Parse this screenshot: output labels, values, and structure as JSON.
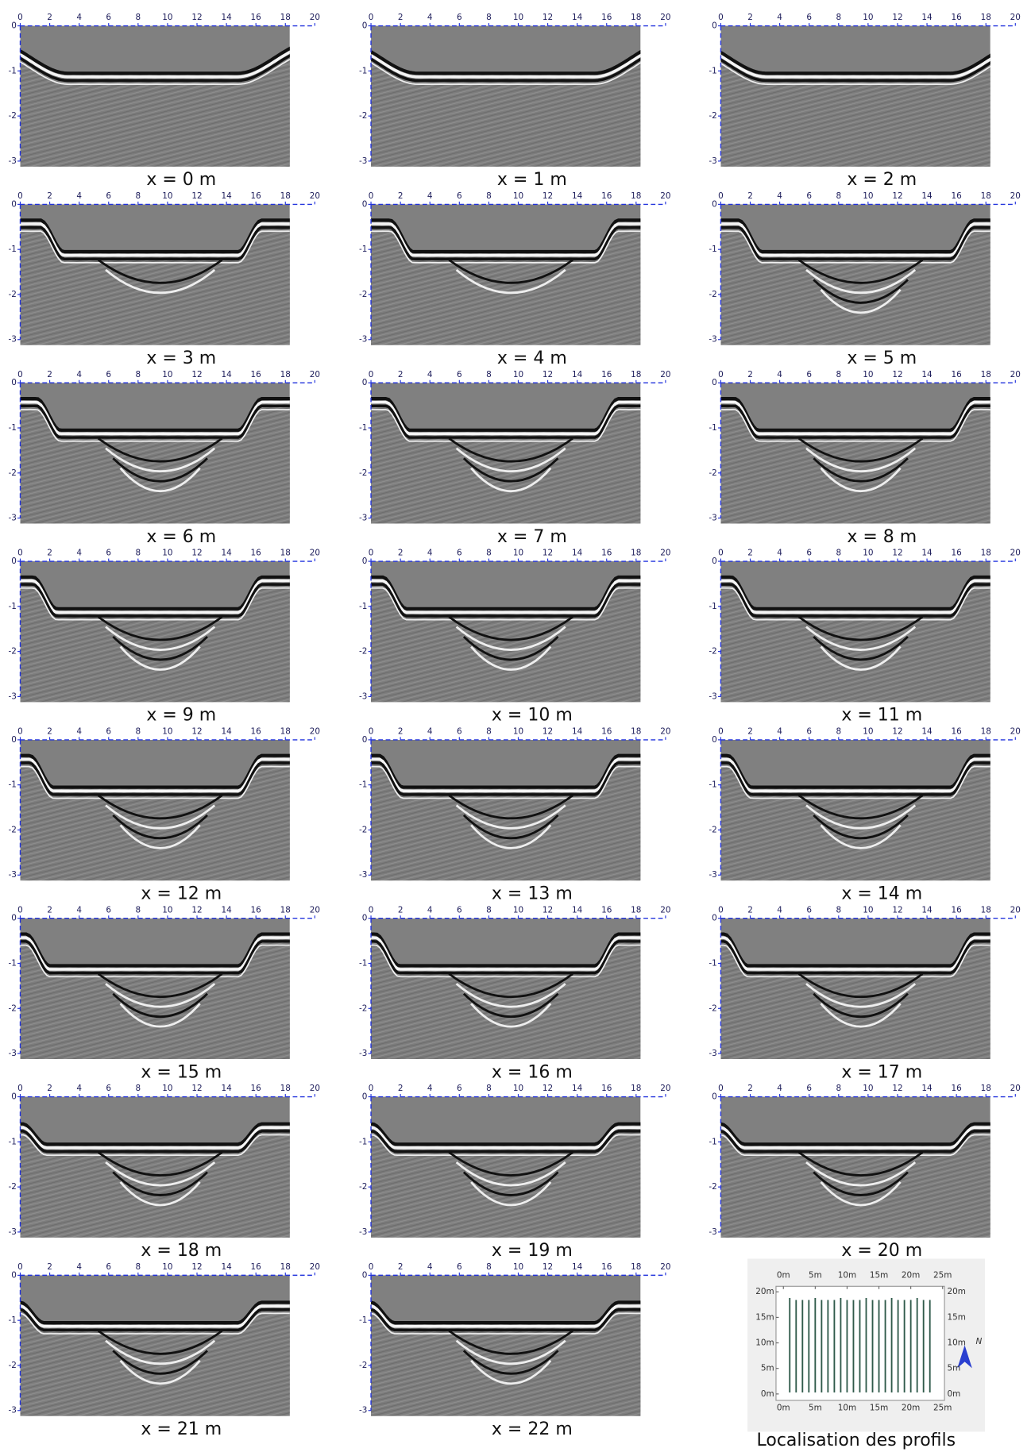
{
  "panels": [
    {
      "label": "x = 0 m"
    },
    {
      "label": "x = 1 m"
    },
    {
      "label": "x = 2 m"
    },
    {
      "label": "x = 3 m"
    },
    {
      "label": "x = 4 m"
    },
    {
      "label": "x = 5 m"
    },
    {
      "label": "x = 6 m"
    },
    {
      "label": "x = 7 m"
    },
    {
      "label": "x = 8 m"
    },
    {
      "label": "x = 9 m"
    },
    {
      "label": "x = 10 m"
    },
    {
      "label": "x = 11 m"
    },
    {
      "label": "x = 12 m"
    },
    {
      "label": "x = 13 m"
    },
    {
      "label": "x = 14 m"
    },
    {
      "label": "x = 15 m"
    },
    {
      "label": "x = 16 m"
    },
    {
      "label": "x = 17 m"
    },
    {
      "label": "x = 18 m"
    },
    {
      "label": "x = 19 m"
    },
    {
      "label": "x = 20 m"
    },
    {
      "label": "x = 21 m"
    },
    {
      "label": "x = 22 m"
    }
  ],
  "axis": {
    "x_ticks": [
      0,
      2,
      4,
      6,
      8,
      10,
      12,
      14,
      16,
      18,
      20
    ],
    "depth_ticks": [
      0,
      -1,
      -2,
      -3
    ]
  },
  "map": {
    "title": "Localisation des profils",
    "north": "N",
    "x_ticks": [
      {
        "value": 0,
        "label": "0m"
      },
      {
        "value": 5,
        "label": "5m"
      },
      {
        "value": 10,
        "label": "10m"
      },
      {
        "value": 15,
        "label": "15m"
      },
      {
        "value": 20,
        "label": "20m"
      },
      {
        "value": 25,
        "label": "25m"
      }
    ],
    "y_ticks": [
      {
        "value": 20,
        "label": "20m"
      },
      {
        "value": 15,
        "label": "15m"
      },
      {
        "value": 10,
        "label": "10m"
      },
      {
        "value": 5,
        "label": "5m"
      },
      {
        "value": 0,
        "label": "0m"
      }
    ]
  }
}
